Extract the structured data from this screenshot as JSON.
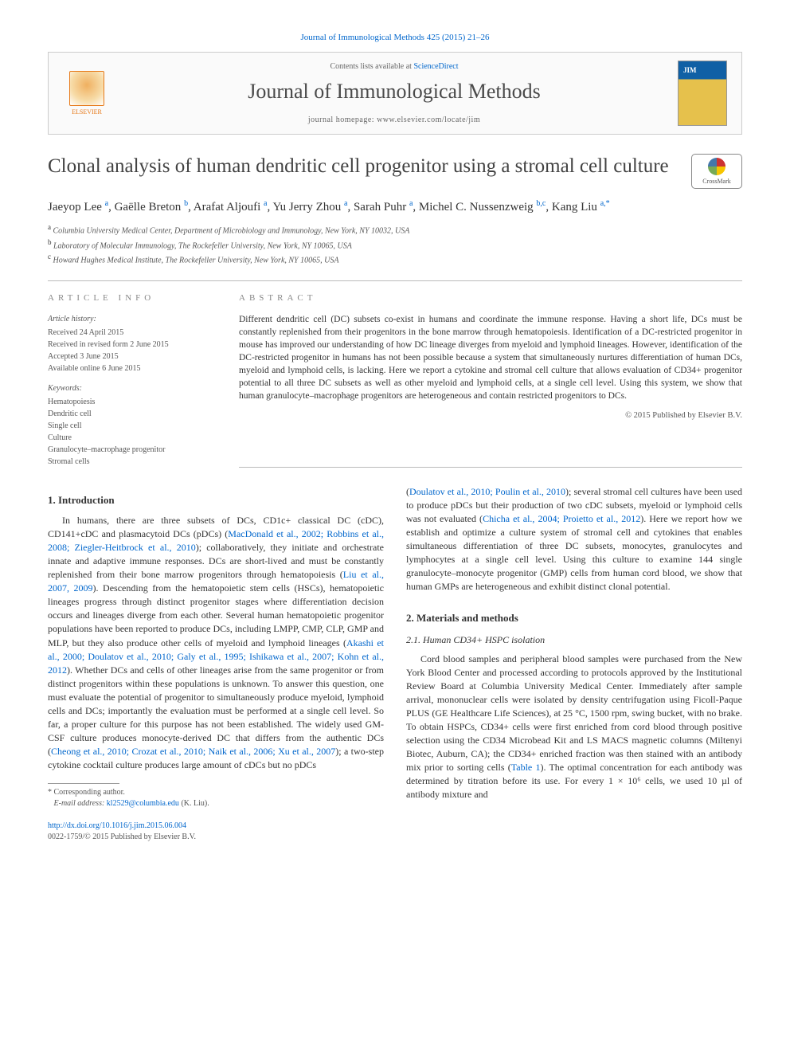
{
  "citation": "Journal of Immunological Methods 425 (2015) 21–26",
  "header": {
    "contents_line_pre": "Contents lists available at ",
    "contents_line_link": "ScienceDirect",
    "journal_name": "Journal of Immunological Methods",
    "homepage_pre": "journal homepage: ",
    "homepage_url": "www.elsevier.com/locate/jim",
    "publisher": "ELSEVIER"
  },
  "crossmark_label": "CrossMark",
  "article": {
    "title": "Clonal analysis of human dendritic cell progenitor using a stromal cell culture",
    "authors_html": "Jaeyop Lee <span class='sup'>a</span>, Gaëlle Breton <span class='sup'>b</span>, Arafat Aljoufi <span class='sup'>a</span>, Yu Jerry Zhou <span class='sup'>a</span>, Sarah Puhr <span class='sup'>a</span>, Michel C. Nussenzweig <span class='sup'>b,c</span>, Kang Liu <span class='sup'>a,*</span>",
    "affiliations": [
      {
        "sup": "a",
        "text": "Columbia University Medical Center, Department of Microbiology and Immunology, New York, NY 10032, USA"
      },
      {
        "sup": "b",
        "text": "Laboratory of Molecular Immunology, The Rockefeller University, New York, NY 10065, USA"
      },
      {
        "sup": "c",
        "text": "Howard Hughes Medical Institute, The Rockefeller University, New York, NY 10065, USA"
      }
    ]
  },
  "info": {
    "heading": "ARTICLE INFO",
    "history_label": "Article history:",
    "history": [
      "Received 24 April 2015",
      "Received in revised form 2 June 2015",
      "Accepted 3 June 2015",
      "Available online 6 June 2015"
    ],
    "keywords_label": "Keywords:",
    "keywords": [
      "Hematopoiesis",
      "Dendritic cell",
      "Single cell",
      "Culture",
      "Granulocyte–macrophage progenitor",
      "Stromal cells"
    ]
  },
  "abstract": {
    "heading": "ABSTRACT",
    "text": "Different dendritic cell (DC) subsets co-exist in humans and coordinate the immune response. Having a short life, DCs must be constantly replenished from their progenitors in the bone marrow through hematopoiesis. Identification of a DC-restricted progenitor in mouse has improved our understanding of how DC lineage diverges from myeloid and lymphoid lineages. However, identification of the DC-restricted progenitor in humans has not been possible because a system that simultaneously nurtures differentiation of human DCs, myeloid and lymphoid cells, is lacking. Here we report a cytokine and stromal cell culture that allows evaluation of CD34+ progenitor potential to all three DC subsets as well as other myeloid and lymphoid cells, at a single cell level. Using this system, we show that human granulocyte–macrophage progenitors are heterogeneous and contain restricted progenitors to DCs.",
    "copyright": "© 2015 Published by Elsevier B.V."
  },
  "body": {
    "left": {
      "heading": "1. Introduction",
      "p1a": "In humans, there are three subsets of DCs, CD1c+ classical DC (cDC), CD141+cDC and plasmacytoid DCs (pDCs) (",
      "p1ref1": "MacDonald et al., 2002; Robbins et al., 2008; Ziegler-Heitbrock et al., 2010",
      "p1b": "); collaboratively, they initiate and orchestrate innate and adaptive immune responses. DCs are short-lived and must be constantly replenished from their bone marrow progenitors through hematopoiesis (",
      "p1ref2": "Liu et al., 2007, 2009",
      "p1c": "). Descending from the hematopoietic stem cells (HSCs), hematopoietic lineages progress through distinct progenitor stages where differentiation decision occurs and lineages diverge from each other. Several human hematopoietic progenitor populations have been reported to produce DCs, including LMPP, CMP, CLP, GMP and MLP, but they also produce other cells of myeloid and lymphoid lineages (",
      "p1ref3": "Akashi et al., 2000; Doulatov et al., 2010; Galy et al., 1995; Ishikawa et al., 2007; Kohn et al., 2012",
      "p1d": "). Whether DCs and cells of other lineages arise from the same progenitor or from distinct progenitors within these populations is unknown. To answer this question, one must evaluate the potential of progenitor to simultaneously produce myeloid, lymphoid cells and DCs; importantly the evaluation must be performed at a single cell level. So far, a proper culture for this purpose has not been established. The widely used GM-CSF culture produces monocyte-derived DC that differs from the authentic DCs (",
      "p1ref4": "Cheong et al., 2010; Crozat et al., 2010; Naik et al., 2006; Xu et al., 2007",
      "p1e": "); a two-step cytokine cocktail culture produces large amount of cDCs but no pDCs"
    },
    "right": {
      "p0a": "(",
      "p0ref1": "Doulatov et al., 2010; Poulin et al., 2010",
      "p0b": "); several stromal cell cultures have been used to produce pDCs but their production of two cDC subsets, myeloid or lymphoid cells was not evaluated (",
      "p0ref2": "Chicha et al., 2004; Proietto et al., 2012",
      "p0c": "). Here we report how we establish and optimize a culture system of stromal cell and cytokines that enables simultaneous differentiation of three DC subsets, monocytes, granulocytes and lymphocytes at a single cell level. Using this culture to examine 144 single granulocyte–monocyte progenitor (GMP) cells from human cord blood, we show that human GMPs are heterogeneous and exhibit distinct clonal potential.",
      "heading2": "2. Materials and methods",
      "sub21": "2.1. Human CD34+ HSPC isolation",
      "p21a": "Cord blood samples and peripheral blood samples were purchased from the New York Blood Center and processed according to protocols approved by the Institutional Review Board at Columbia University Medical Center. Immediately after sample arrival, mononuclear cells were isolated by density centrifugation using Ficoll-Paque PLUS (GE Healthcare Life Sciences), at 25 °C, 1500 rpm, swing bucket, with no brake. To obtain HSPCs, CD34+ cells were first enriched from cord blood through positive selection using the CD34 Microbead Kit and LS MACS magnetic columns (Miltenyi Biotec, Auburn, CA); the CD34+ enriched fraction was then stained with an antibody mix prior to sorting cells (",
      "p21ref1": "Table 1",
      "p21b": "). The optimal concentration for each antibody was determined by titration before its use. For every 1 × 10⁶ cells, we used 10 µl of antibody mixture and"
    }
  },
  "footnote": {
    "corr": "* Corresponding author.",
    "email_label": "E-mail address: ",
    "email": "kl2529@columbia.edu",
    "email_suffix": " (K. Liu)."
  },
  "footer": {
    "doi": "http://dx.doi.org/10.1016/j.jim.2015.06.004",
    "issn": "0022-1759/© 2015 Published by Elsevier B.V."
  },
  "colors": {
    "link": "#0066cc",
    "text": "#333333",
    "muted": "#555555",
    "rule": "#bbbbbb",
    "orange": "#e67817"
  }
}
